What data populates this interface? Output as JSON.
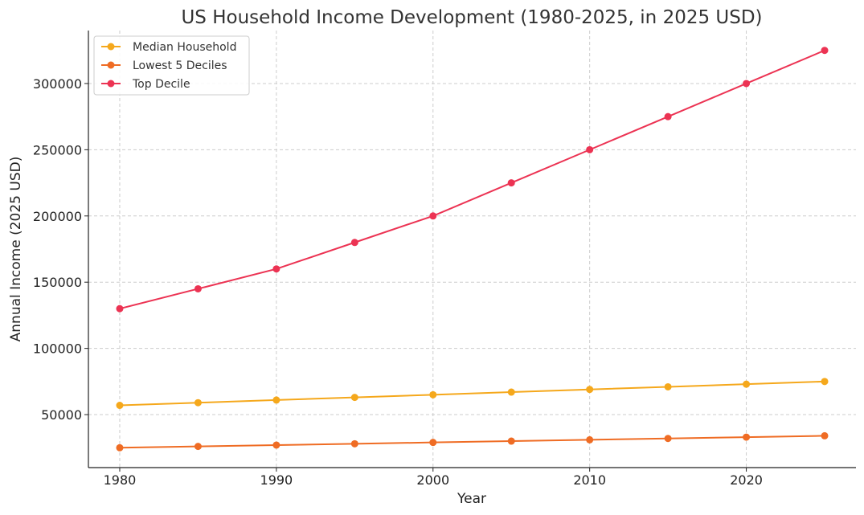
{
  "chart_data": {
    "type": "line",
    "title": "US Household Income Development (1980-2025, in 2025 USD)",
    "xlabel": "Year",
    "ylabel": "Annual Income (2025 USD)",
    "x": [
      1980,
      1985,
      1990,
      1995,
      2000,
      2005,
      2010,
      2015,
      2020,
      2025
    ],
    "xlim": [
      1978,
      2027
    ],
    "ylim": [
      10000,
      340000
    ],
    "xticks": [
      "1980",
      "1990",
      "2000",
      "2010",
      "2020"
    ],
    "yticks": [
      "50000",
      "100000",
      "150000",
      "200000",
      "250000",
      "300000"
    ],
    "grid": true,
    "legend_position": "top-left",
    "series": [
      {
        "name": "Median Household",
        "color": "#f5a81c",
        "values": [
          57000,
          59000,
          61000,
          63000,
          65000,
          67000,
          69000,
          71000,
          73000,
          75000
        ]
      },
      {
        "name": "Lowest 5 Deciles",
        "color": "#ef6c24",
        "values": [
          25000,
          26000,
          27000,
          28000,
          29000,
          30000,
          31000,
          32000,
          33000,
          34000
        ]
      },
      {
        "name": "Top Decile",
        "color": "#ec3353",
        "values": [
          130000,
          145000,
          160000,
          180000,
          200000,
          225000,
          250000,
          275000,
          300000,
          325000
        ]
      }
    ]
  }
}
